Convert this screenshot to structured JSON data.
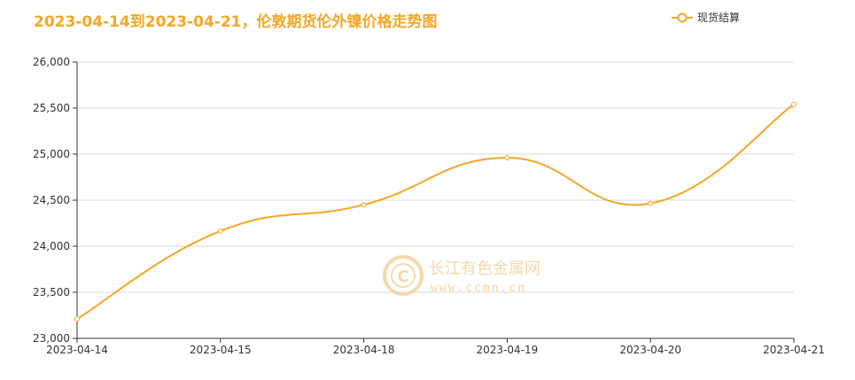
{
  "chart_data": {
    "type": "line",
    "title": "2023-04-14到2023-04-21，伦敦期货伦外镍价格走势图",
    "categories": [
      "2023-04-14",
      "2023-04-15",
      "2023-04-18",
      "2023-04-19",
      "2023-04-20",
      "2023-04-21"
    ],
    "series": [
      {
        "name": "现货结算",
        "values": [
          23210,
          24165,
          24450,
          24960,
          24465,
          25540
        ],
        "color": "#f5a623"
      }
    ],
    "ylim": [
      23000,
      26000
    ],
    "yticks": [
      23000,
      23500,
      24000,
      24500,
      25000,
      25500,
      26000
    ],
    "ytick_labels": [
      "23,000",
      "23,500",
      "24,000",
      "24,500",
      "25,000",
      "25,500",
      "26,000"
    ],
    "grid": true,
    "legend_position": "top-right",
    "xlabel": "",
    "ylabel": ""
  },
  "watermark": {
    "logo_letter": "C",
    "name": "长江有色金属网",
    "url": "www.ccmn.cn"
  }
}
